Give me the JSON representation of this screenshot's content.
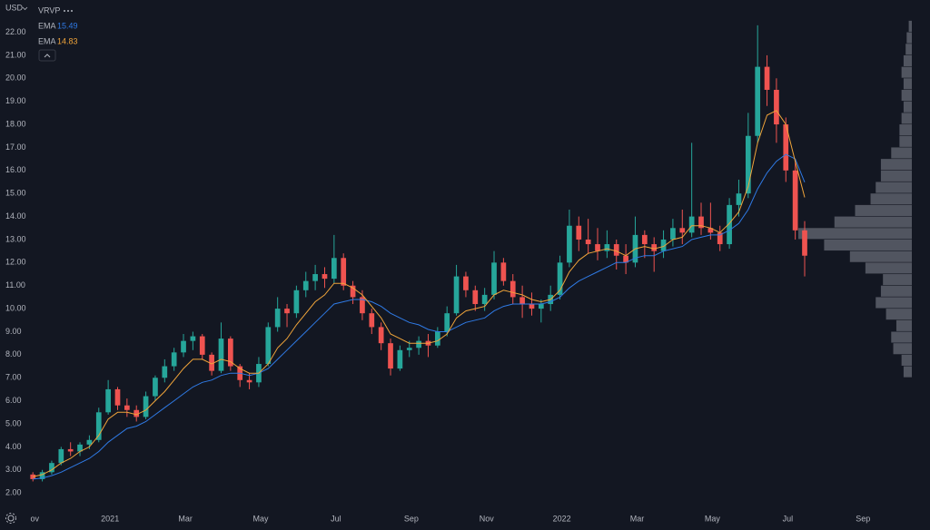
{
  "chart_data": {
    "type": "candlestick",
    "currency": "USD",
    "indicator": "VRVP",
    "ylim": [
      1.1,
      23.4
    ],
    "yticks": [
      {
        "value": 2,
        "label": "2.00"
      },
      {
        "value": 3,
        "label": "3.00"
      },
      {
        "value": 4,
        "label": "4.00"
      },
      {
        "value": 5,
        "label": "5.00"
      },
      {
        "value": 6,
        "label": "6.00"
      },
      {
        "value": 7,
        "label": "7.00"
      },
      {
        "value": 8,
        "label": "8.00"
      },
      {
        "value": 9,
        "label": "9.00"
      },
      {
        "value": 10,
        "label": "10.00"
      },
      {
        "value": 11,
        "label": "11.00"
      },
      {
        "value": 12,
        "label": "12.00"
      },
      {
        "value": 13,
        "label": "13.00"
      },
      {
        "value": 14,
        "label": "14.00"
      },
      {
        "value": 15,
        "label": "15.00"
      },
      {
        "value": 16,
        "label": "16.00"
      },
      {
        "value": 17,
        "label": "17.00"
      },
      {
        "value": 18,
        "label": "18.00"
      },
      {
        "value": 19,
        "label": "19.00"
      },
      {
        "value": 20,
        "label": "20.00"
      },
      {
        "value": 21,
        "label": "21.00"
      },
      {
        "value": 22,
        "label": "22.00"
      }
    ],
    "xlim": [
      -0.2,
      23.2
    ],
    "xticks": [
      {
        "value": 0,
        "label": "ov"
      },
      {
        "value": 2,
        "label": "2021"
      },
      {
        "value": 4,
        "label": "Mar"
      },
      {
        "value": 6,
        "label": "May"
      },
      {
        "value": 8,
        "label": "Jul"
      },
      {
        "value": 10,
        "label": "Sep"
      },
      {
        "value": 12,
        "label": "Nov"
      },
      {
        "value": 14,
        "label": "2022"
      },
      {
        "value": 16,
        "label": "Mar"
      },
      {
        "value": 18,
        "label": "May"
      },
      {
        "value": 20,
        "label": "Jul"
      },
      {
        "value": 22,
        "label": "Sep"
      }
    ],
    "grid": false,
    "up_color": "#26a69a",
    "down_color": "#ef5350",
    "candles": {
      "x": [
        -0.05,
        0.2,
        0.45,
        0.7,
        0.95,
        1.2,
        1.45,
        1.7,
        1.95,
        2.2,
        2.45,
        2.7,
        2.95,
        3.2,
        3.45,
        3.7,
        3.95,
        4.2,
        4.45,
        4.7,
        4.95,
        5.2,
        5.45,
        5.7,
        5.95,
        6.2,
        6.45,
        6.7,
        6.95,
        7.2,
        7.45,
        7.7,
        7.95,
        8.2,
        8.45,
        8.7,
        8.95,
        9.2,
        9.45,
        9.7,
        9.95,
        10.2,
        10.45,
        10.7,
        10.95,
        11.2,
        11.45,
        11.7,
        11.95,
        12.2,
        12.45,
        12.7,
        12.95,
        13.2,
        13.45,
        13.7,
        13.95,
        14.2,
        14.45,
        14.7,
        14.95,
        15.2,
        15.45,
        15.7,
        15.95,
        16.2,
        16.45,
        16.7,
        16.95,
        17.2,
        17.45,
        17.7,
        17.95,
        18.2,
        18.45,
        18.7,
        18.95,
        19.2,
        19.45,
        19.7,
        19.95,
        20.2,
        20.45
      ],
      "open": [
        2.8,
        2.6,
        2.9,
        3.3,
        3.9,
        3.8,
        4.1,
        4.3,
        5.5,
        6.5,
        5.8,
        5.6,
        5.3,
        6.2,
        7.0,
        7.5,
        8.1,
        8.6,
        8.8,
        8.0,
        7.3,
        8.7,
        7.5,
        6.9,
        6.8,
        7.6,
        9.2,
        10.0,
        9.8,
        10.8,
        11.2,
        11.5,
        11.3,
        12.2,
        11.0,
        10.5,
        9.8,
        9.2,
        8.5,
        7.4,
        8.2,
        8.3,
        8.6,
        8.4,
        9.0,
        9.8,
        11.4,
        10.8,
        10.2,
        10.6,
        12.0,
        11.2,
        10.5,
        10.2,
        10.0,
        10.2,
        10.6,
        12.0,
        13.6,
        13.0,
        12.8,
        12.5,
        12.8,
        12.3,
        12.0,
        13.2,
        12.8,
        12.5,
        13.0,
        13.5,
        13.3,
        14.0,
        13.5,
        13.3,
        12.8,
        14.5,
        15.0,
        17.5,
        20.5,
        19.5,
        18.0,
        16.0,
        13.4
      ],
      "high": [
        2.9,
        3.0,
        3.4,
        4.0,
        4.2,
        4.2,
        4.5,
        5.7,
        6.9,
        6.6,
        6.1,
        5.8,
        6.4,
        7.1,
        7.8,
        8.3,
        8.9,
        9.0,
        8.9,
        8.1,
        9.4,
        8.8,
        7.6,
        7.2,
        7.9,
        9.4,
        10.5,
        10.2,
        11.0,
        11.6,
        11.9,
        11.8,
        13.2,
        12.4,
        11.2,
        10.8,
        10.0,
        9.4,
        8.7,
        8.4,
        8.6,
        8.8,
        8.9,
        9.2,
        10.1,
        11.9,
        11.6,
        11.0,
        10.9,
        12.5,
        12.2,
        11.5,
        11.0,
        10.7,
        10.4,
        11.0,
        12.3,
        14.3,
        14.0,
        13.9,
        13.5,
        13.4,
        13.0,
        12.8,
        14.0,
        13.4,
        13.1,
        13.4,
        13.9,
        14.3,
        17.2,
        14.6,
        14.6,
        13.6,
        14.8,
        15.6,
        18.5,
        22.3,
        21.0,
        20.0,
        18.3,
        16.5,
        13.8
      ],
      "low": [
        2.5,
        2.5,
        2.8,
        3.2,
        3.6,
        3.6,
        3.9,
        4.2,
        5.4,
        5.6,
        5.3,
        5.1,
        5.2,
        6.0,
        6.8,
        7.3,
        7.9,
        8.2,
        7.8,
        7.1,
        7.2,
        7.3,
        6.6,
        6.5,
        6.6,
        7.5,
        9.0,
        9.2,
        9.6,
        10.5,
        10.8,
        10.9,
        11.1,
        10.8,
        10.2,
        9.5,
        8.9,
        8.2,
        7.1,
        7.3,
        7.9,
        8.0,
        7.9,
        8.3,
        8.8,
        9.7,
        10.5,
        9.9,
        9.9,
        10.4,
        11.0,
        10.2,
        9.6,
        9.7,
        9.4,
        9.9,
        10.4,
        11.8,
        12.5,
        12.4,
        12.1,
        12.2,
        11.7,
        11.5,
        11.8,
        12.2,
        11.6,
        12.2,
        12.7,
        12.8,
        13.1,
        13.2,
        13.0,
        12.5,
        12.6,
        14.0,
        14.8,
        17.2,
        18.8,
        17.2,
        15.5,
        13.0,
        11.4
      ],
      "close": [
        2.6,
        2.9,
        3.3,
        3.9,
        3.8,
        4.1,
        4.3,
        5.5,
        6.5,
        5.8,
        5.6,
        5.3,
        6.2,
        7.0,
        7.5,
        8.1,
        8.6,
        8.8,
        8.0,
        7.3,
        8.7,
        7.5,
        6.9,
        6.8,
        7.6,
        9.2,
        10.0,
        9.8,
        10.8,
        11.2,
        11.5,
        11.3,
        12.2,
        11.0,
        10.5,
        9.8,
        9.2,
        8.5,
        7.4,
        8.2,
        8.3,
        8.6,
        8.4,
        9.0,
        9.8,
        11.4,
        10.8,
        10.2,
        10.6,
        12.0,
        11.2,
        10.5,
        10.2,
        10.0,
        10.2,
        10.6,
        12.0,
        13.6,
        13.0,
        12.8,
        12.5,
        12.8,
        12.3,
        12.0,
        13.2,
        12.8,
        12.5,
        13.0,
        13.5,
        13.3,
        14.0,
        13.5,
        13.3,
        12.8,
        14.5,
        15.0,
        17.5,
        20.5,
        19.5,
        18.0,
        16.0,
        13.4,
        12.3
      ]
    },
    "series": [
      {
        "name": "EMA",
        "color": "#2f7ae5",
        "values": [
          2.6,
          2.65,
          2.75,
          2.9,
          3.1,
          3.3,
          3.5,
          3.8,
          4.2,
          4.5,
          4.8,
          4.9,
          5.1,
          5.4,
          5.7,
          6.0,
          6.3,
          6.6,
          6.8,
          6.9,
          7.1,
          7.2,
          7.2,
          7.1,
          7.2,
          7.4,
          7.8,
          8.2,
          8.6,
          9.0,
          9.4,
          9.8,
          10.2,
          10.3,
          10.4,
          10.4,
          10.3,
          10.1,
          9.8,
          9.6,
          9.4,
          9.3,
          9.1,
          9.0,
          9.0,
          9.2,
          9.4,
          9.5,
          9.6,
          9.9,
          10.1,
          10.2,
          10.2,
          10.2,
          10.2,
          10.3,
          10.5,
          10.9,
          11.2,
          11.4,
          11.6,
          11.8,
          12.0,
          12.0,
          12.2,
          12.3,
          12.3,
          12.5,
          12.6,
          12.7,
          13.0,
          13.1,
          13.2,
          13.2,
          13.4,
          13.7,
          14.3,
          15.2,
          15.9,
          16.4,
          16.7,
          16.5,
          15.49
        ]
      },
      {
        "name": "EMA",
        "color": "#f0a43a",
        "values": [
          2.7,
          2.8,
          3.0,
          3.3,
          3.5,
          3.8,
          4.0,
          4.5,
          5.2,
          5.5,
          5.5,
          5.4,
          5.6,
          6.0,
          6.4,
          6.9,
          7.4,
          7.8,
          7.8,
          7.6,
          7.8,
          7.7,
          7.4,
          7.2,
          7.2,
          7.6,
          8.3,
          8.7,
          9.3,
          9.8,
          10.3,
          10.6,
          11.1,
          11.1,
          10.9,
          10.6,
          10.1,
          9.6,
          8.9,
          8.7,
          8.5,
          8.5,
          8.5,
          8.6,
          8.9,
          9.6,
          9.9,
          10.0,
          10.1,
          10.6,
          10.8,
          10.7,
          10.6,
          10.4,
          10.3,
          10.4,
          10.8,
          11.6,
          12.1,
          12.4,
          12.5,
          12.6,
          12.5,
          12.3,
          12.6,
          12.7,
          12.6,
          12.7,
          13.0,
          13.1,
          13.6,
          13.6,
          13.5,
          13.3,
          13.7,
          14.2,
          15.3,
          17.2,
          18.4,
          18.6,
          18.0,
          16.4,
          14.83
        ]
      }
    ],
    "volume_profile": {
      "color": "#5d606b",
      "bins": [
        7.0,
        7.5,
        8.0,
        8.5,
        9.0,
        9.5,
        10.0,
        10.5,
        11.0,
        11.5,
        12.0,
        12.5,
        13.0,
        13.5,
        14.0,
        14.5,
        15.0,
        15.5,
        16.0,
        16.5,
        17.0,
        17.5,
        18.0,
        18.5,
        19.0,
        19.5,
        20.0,
        20.5,
        21.0,
        21.5,
        22.0,
        22.5
      ],
      "volumes": [
        8,
        10,
        18,
        20,
        15,
        25,
        35,
        30,
        28,
        45,
        60,
        85,
        110,
        75,
        55,
        40,
        35,
        30,
        30,
        20,
        12,
        12,
        10,
        8,
        10,
        8,
        10,
        8,
        6,
        5,
        3
      ]
    }
  }
}
